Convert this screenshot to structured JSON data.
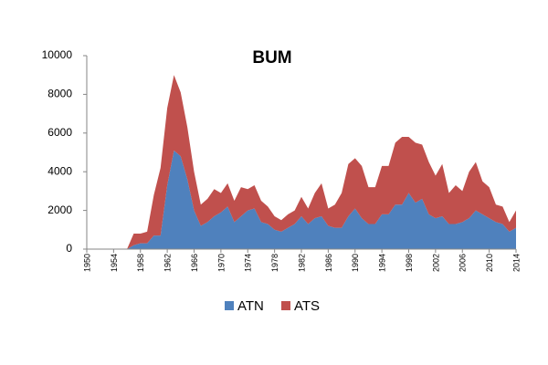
{
  "chart_data": {
    "type": "stacked_area",
    "title": "BUM",
    "x": [
      1950,
      1951,
      1952,
      1953,
      1954,
      1955,
      1956,
      1957,
      1958,
      1959,
      1960,
      1961,
      1962,
      1963,
      1964,
      1965,
      1966,
      1967,
      1968,
      1969,
      1970,
      1971,
      1972,
      1973,
      1974,
      1975,
      1976,
      1977,
      1978,
      1979,
      1980,
      1981,
      1982,
      1983,
      1984,
      1985,
      1986,
      1987,
      1988,
      1989,
      1990,
      1991,
      1992,
      1993,
      1994,
      1995,
      1996,
      1997,
      1998,
      1999,
      2000,
      2001,
      2002,
      2003,
      2004,
      2005,
      2006,
      2007,
      2008,
      2009,
      2010,
      2011,
      2012,
      2013,
      2014
    ],
    "series": [
      {
        "name": "ATN",
        "color": "#4f81bd",
        "values": [
          0,
          0,
          0,
          0,
          0,
          0,
          0,
          200,
          300,
          300,
          700,
          700,
          3300,
          5100,
          4800,
          3600,
          2000,
          1200,
          1400,
          1700,
          1900,
          2200,
          1400,
          1700,
          2000,
          2100,
          1400,
          1300,
          1000,
          900,
          1100,
          1300,
          1700,
          1300,
          1600,
          1700,
          1200,
          1100,
          1100,
          1700,
          2100,
          1600,
          1300,
          1300,
          1800,
          1800,
          2300,
          2300,
          2900,
          2400,
          2600,
          1800,
          1600,
          1700,
          1300,
          1300,
          1400,
          1600,
          2000,
          1800,
          1600,
          1400,
          1300,
          900,
          1100
        ]
      },
      {
        "name": "ATS",
        "color": "#c0504d",
        "values": [
          0,
          0,
          0,
          0,
          0,
          0,
          0,
          600,
          500,
          600,
          2100,
          3500,
          4000,
          3900,
          3300,
          2700,
          2000,
          1100,
          1200,
          1400,
          1000,
          1200,
          1100,
          1500,
          1100,
          1200,
          1100,
          900,
          700,
          600,
          700,
          700,
          1000,
          800,
          1300,
          1700,
          900,
          1200,
          1800,
          2700,
          2600,
          2700,
          1900,
          1900,
          2500,
          2500,
          3200,
          3500,
          2900,
          3100,
          2800,
          2700,
          2200,
          2700,
          1600,
          2000,
          1600,
          2400,
          2500,
          1700,
          1600,
          900,
          900,
          500,
          900
        ]
      }
    ],
    "xlim": [
      1950,
      2014
    ],
    "xticks": [
      1950,
      1954,
      1958,
      1962,
      1966,
      1970,
      1974,
      1978,
      1982,
      1986,
      1990,
      1994,
      1998,
      2002,
      2006,
      2010,
      2014
    ],
    "ylim": [
      0,
      10000
    ],
    "yticks": [
      0,
      2000,
      4000,
      6000,
      8000,
      10000
    ],
    "grid": false,
    "legend": "bottom"
  }
}
